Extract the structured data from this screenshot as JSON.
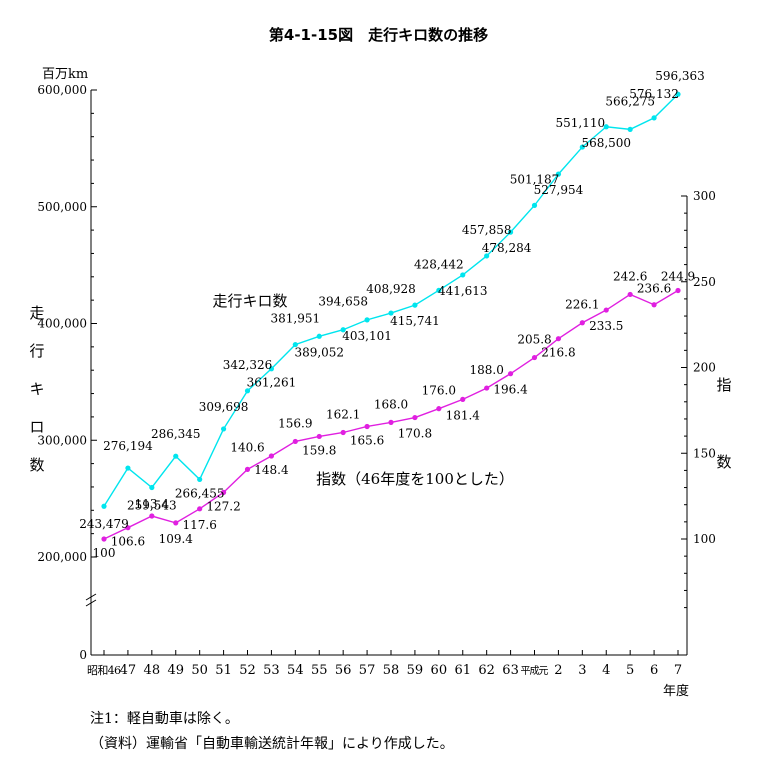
{
  "title": "第4-1-15図　走行キロ数の推移",
  "notes": [
    "注1：軽自動車は除く。",
    "（資料）運輸省「自動車輸送統計年報」により作成した。"
  ],
  "chart_data": {
    "type": "line",
    "title": "第4-1-15図　走行キロ数の推移",
    "x_unit": "年度",
    "categories": [
      "昭和46",
      "47",
      "48",
      "49",
      "50",
      "51",
      "52",
      "53",
      "54",
      "55",
      "56",
      "57",
      "58",
      "59",
      "60",
      "61",
      "62",
      "63",
      "平成元",
      "2",
      "3",
      "4",
      "5",
      "6",
      "7"
    ],
    "y_left": {
      "unit": "百万km",
      "label": "走行キロ数",
      "ylim": [
        0,
        600000
      ],
      "ticks": [
        0,
        200000,
        300000,
        400000,
        500000,
        600000
      ],
      "tick_labels": [
        "0",
        "200,000",
        "300,000",
        "400,000",
        "500,000",
        "600,000"
      ],
      "broken_axis_below": 200000
    },
    "y_right": {
      "label": "指数",
      "ticks": [
        100,
        150,
        200,
        250,
        300
      ],
      "tick_labels": [
        "100",
        "150",
        "200",
        "250",
        "300"
      ]
    },
    "series": [
      {
        "name": "走行キロ数",
        "axis": "left",
        "color": "#00e5ee",
        "values": [
          243479,
          276194,
          259543,
          286345,
          266455,
          309698,
          342326,
          361261,
          381951,
          389052,
          394658,
          403101,
          408928,
          415741,
          428442,
          441613,
          457858,
          478284,
          501187,
          527954,
          551110,
          568500,
          566275,
          576132,
          596363
        ],
        "labels": [
          "243,479",
          "276,194",
          "259,543",
          "286,345",
          "266,455",
          "309,698",
          "342,326",
          "361,261",
          "381,951",
          "389,052",
          "394,658",
          "403,101",
          "408,928",
          "415,741",
          "428,442",
          "441,613",
          "457,858",
          "478,284",
          "501,187",
          "527,954",
          "551,110",
          "568,500",
          "566,275",
          "576,132",
          "596,363"
        ]
      },
      {
        "name": "指数（46年度を100とした）",
        "axis": "right",
        "color": "#e020e0",
        "values": [
          100,
          106.6,
          113.4,
          109.4,
          117.6,
          127.2,
          140.6,
          148.4,
          156.9,
          159.8,
          162.1,
          165.6,
          168.0,
          170.8,
          176.0,
          181.4,
          188.0,
          196.4,
          205.8,
          216.8,
          226.1,
          233.5,
          242.6,
          236.6,
          244.9
        ],
        "labels": [
          "100",
          "106.6",
          "113.4",
          "109.4",
          "117.6",
          "127.2",
          "140.6",
          "148.4",
          "156.9",
          "159.8",
          "162.1",
          "165.6",
          "168.0",
          "170.8",
          "176.0",
          "181.4",
          "188.0",
          "196.4",
          "205.8",
          "216.8",
          "226.1",
          "233.5",
          "242.6",
          "236.6",
          "244.9"
        ]
      }
    ],
    "annotations": [
      "走行キロ数",
      "指数（46年度を100とした）"
    ]
  }
}
